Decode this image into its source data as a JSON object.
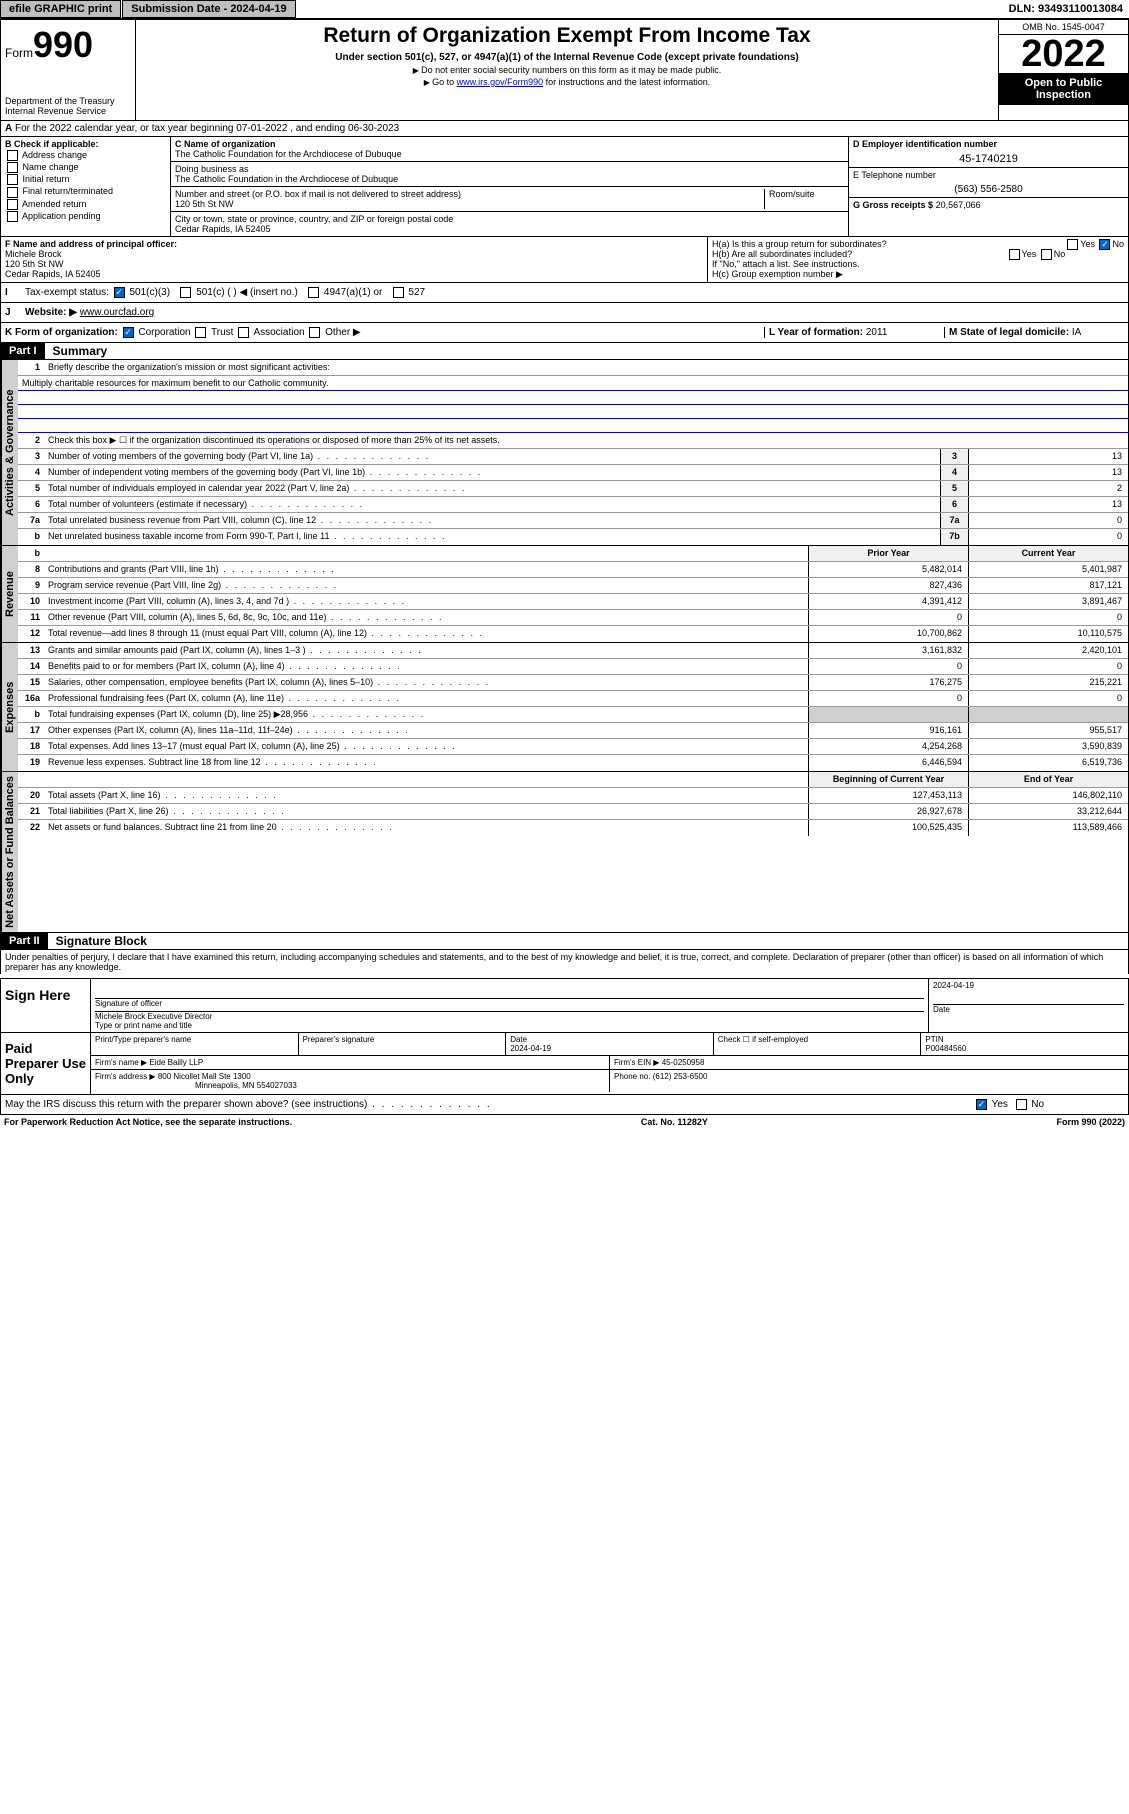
{
  "topbar": {
    "efile": "efile GRAPHIC print",
    "submission_label": "Submission Date - 2024-04-19",
    "dln": "DLN: 93493110013084"
  },
  "header": {
    "form_label": "Form",
    "form_number": "990",
    "dept": "Department of the Treasury",
    "irs": "Internal Revenue Service",
    "title": "Return of Organization Exempt From Income Tax",
    "subtitle": "Under section 501(c), 527, or 4947(a)(1) of the Internal Revenue Code (except private foundations)",
    "hint1": "Do not enter social security numbers on this form as it may be made public.",
    "hint2_pre": "Go to ",
    "hint2_link": "www.irs.gov/Form990",
    "hint2_post": " for instructions and the latest information.",
    "omb": "OMB No. 1545-0047",
    "year": "2022",
    "inspect": "Open to Public Inspection"
  },
  "A": {
    "text": "For the 2022 calendar year, or tax year beginning 07-01-2022   , and ending 06-30-2023"
  },
  "B": {
    "label": "B Check if applicable:",
    "items": [
      "Address change",
      "Name change",
      "Initial return",
      "Final return/terminated",
      "Amended return",
      "Application pending"
    ]
  },
  "C": {
    "name_label": "C Name of organization",
    "name": "The Catholic Foundation for the Archdiocese of Dubuque",
    "dba_label": "Doing business as",
    "dba": "The Catholic Foundation in the Archdiocese of Dubuque",
    "addr_label": "Number and street (or P.O. box if mail is not delivered to street address)",
    "room_label": "Room/suite",
    "addr": "120 5th St NW",
    "city_label": "City or town, state or province, country, and ZIP or foreign postal code",
    "city": "Cedar Rapids, IA  52405"
  },
  "D": {
    "label": "D Employer identification number",
    "value": "45-1740219"
  },
  "E": {
    "label": "E Telephone number",
    "value": "(563) 556-2580"
  },
  "G": {
    "label": "G Gross receipts $",
    "value": "20,567,066"
  },
  "F": {
    "label": "F  Name and address of principal officer:",
    "name": "Michele Brock",
    "addr": "120 5th St NW",
    "city": "Cedar Rapids, IA  52405"
  },
  "H": {
    "a": "H(a)  Is this a group return for subordinates?",
    "b": "H(b)  Are all subordinates included?",
    "b_note": "If \"No,\" attach a list. See instructions.",
    "c": "H(c)  Group exemption number ▶",
    "yes": "Yes",
    "no": "No"
  },
  "I": {
    "label": "Tax-exempt status:",
    "opts": [
      "501(c)(3)",
      "501(c) (  ) ◀ (insert no.)",
      "4947(a)(1) or",
      "527"
    ]
  },
  "J": {
    "label": "Website: ▶",
    "value": "www.ourcfad.org"
  },
  "K": {
    "label": "K Form of organization:",
    "opts": [
      "Corporation",
      "Trust",
      "Association",
      "Other ▶"
    ]
  },
  "L": {
    "label": "L Year of formation:",
    "value": "2011"
  },
  "M": {
    "label": "M State of legal domicile:",
    "value": "IA"
  },
  "part1": {
    "header": "Part I",
    "title": "Summary",
    "l1": "Briefly describe the organization's mission or most significant activities:",
    "mission": "Multiply charitable resources for maximum benefit to our Catholic community.",
    "l2": "Check this box ▶ ☐  if the organization discontinued its operations or disposed of more than 25% of its net assets.",
    "lines_gov": [
      {
        "n": "3",
        "t": "Number of voting members of the governing body (Part VI, line 1a)",
        "box": "3",
        "v": "13"
      },
      {
        "n": "4",
        "t": "Number of independent voting members of the governing body (Part VI, line 1b)",
        "box": "4",
        "v": "13"
      },
      {
        "n": "5",
        "t": "Total number of individuals employed in calendar year 2022 (Part V, line 2a)",
        "box": "5",
        "v": "2"
      },
      {
        "n": "6",
        "t": "Total number of volunteers (estimate if necessary)",
        "box": "6",
        "v": "13"
      },
      {
        "n": "7a",
        "t": "Total unrelated business revenue from Part VIII, column (C), line 12",
        "box": "7a",
        "v": "0"
      },
      {
        "n": "b",
        "t": "Net unrelated business taxable income from Form 990-T, Part I, line 11",
        "box": "7b",
        "v": "0"
      }
    ],
    "prior_year": "Prior Year",
    "current_year": "Current Year",
    "lines_rev": [
      {
        "n": "8",
        "t": "Contributions and grants (Part VIII, line 1h)",
        "p": "5,482,014",
        "c": "5,401,987"
      },
      {
        "n": "9",
        "t": "Program service revenue (Part VIII, line 2g)",
        "p": "827,436",
        "c": "817,121"
      },
      {
        "n": "10",
        "t": "Investment income (Part VIII, column (A), lines 3, 4, and 7d )",
        "p": "4,391,412",
        "c": "3,891,467"
      },
      {
        "n": "11",
        "t": "Other revenue (Part VIII, column (A), lines 5, 6d, 8c, 9c, 10c, and 11e)",
        "p": "0",
        "c": "0"
      },
      {
        "n": "12",
        "t": "Total revenue—add lines 8 through 11 (must equal Part VIII, column (A), line 12)",
        "p": "10,700,862",
        "c": "10,110,575"
      }
    ],
    "lines_exp": [
      {
        "n": "13",
        "t": "Grants and similar amounts paid (Part IX, column (A), lines 1–3 )",
        "p": "3,161,832",
        "c": "2,420,101"
      },
      {
        "n": "14",
        "t": "Benefits paid to or for members (Part IX, column (A), line 4)",
        "p": "0",
        "c": "0"
      },
      {
        "n": "15",
        "t": "Salaries, other compensation, employee benefits (Part IX, column (A), lines 5–10)",
        "p": "176,275",
        "c": "215,221"
      },
      {
        "n": "16a",
        "t": "Professional fundraising fees (Part IX, column (A), line 11e)",
        "p": "0",
        "c": "0"
      },
      {
        "n": "b",
        "t": "Total fundraising expenses (Part IX, column (D), line 25) ▶28,956",
        "p": "",
        "c": "",
        "shaded": true
      },
      {
        "n": "17",
        "t": "Other expenses (Part IX, column (A), lines 11a–11d, 11f–24e)",
        "p": "916,161",
        "c": "955,517"
      },
      {
        "n": "18",
        "t": "Total expenses. Add lines 13–17 (must equal Part IX, column (A), line 25)",
        "p": "4,254,268",
        "c": "3,590,839"
      },
      {
        "n": "19",
        "t": "Revenue less expenses. Subtract line 18 from line 12",
        "p": "6,446,594",
        "c": "6,519,736"
      }
    ],
    "boy": "Beginning of Current Year",
    "eoy": "End of Year",
    "lines_net": [
      {
        "n": "20",
        "t": "Total assets (Part X, line 16)",
        "p": "127,453,113",
        "c": "146,802,110"
      },
      {
        "n": "21",
        "t": "Total liabilities (Part X, line 26)",
        "p": "26,927,678",
        "c": "33,212,644"
      },
      {
        "n": "22",
        "t": "Net assets or fund balances. Subtract line 21 from line 20",
        "p": "100,525,435",
        "c": "113,589,466"
      }
    ]
  },
  "part2": {
    "header": "Part II",
    "title": "Signature Block",
    "penalty": "Under penalties of perjury, I declare that I have examined this return, including accompanying schedules and statements, and to the best of my knowledge and belief, it is true, correct, and complete. Declaration of preparer (other than officer) is based on all information of which preparer has any knowledge.",
    "sign_here": "Sign Here",
    "sig_officer": "Signature of officer",
    "date": "Date",
    "sig_date": "2024-04-19",
    "officer_name": "Michele Brock  Executive Director",
    "type_name": "Type or print name and title",
    "paid": "Paid Preparer Use Only",
    "prep_name_label": "Print/Type preparer's name",
    "prep_sig_label": "Preparer's signature",
    "prep_date": "2024-04-19",
    "check_if": "Check ☐ if self-employed",
    "ptin_label": "PTIN",
    "ptin": "P00484560",
    "firm_name_label": "Firm's name     ▶",
    "firm_name": "Eide Bailly LLP",
    "firm_ein_label": "Firm's EIN ▶",
    "firm_ein": "45-0250958",
    "firm_addr_label": "Firm's address ▶",
    "firm_addr": "800 Nicollet Mall Ste 1300",
    "firm_city": "Minneapolis, MN  554027033",
    "firm_phone_label": "Phone no.",
    "firm_phone": "(612) 253-6500",
    "may_irs": "May the IRS discuss this return with the preparer shown above? (see instructions)"
  },
  "footer": {
    "pra": "For Paperwork Reduction Act Notice, see the separate instructions.",
    "cat": "Cat. No. 11282Y",
    "form": "Form 990 (2022)"
  },
  "sidebars": {
    "gov": "Activities & Governance",
    "rev": "Revenue",
    "exp": "Expenses",
    "net": "Net Assets or Fund Balances"
  }
}
